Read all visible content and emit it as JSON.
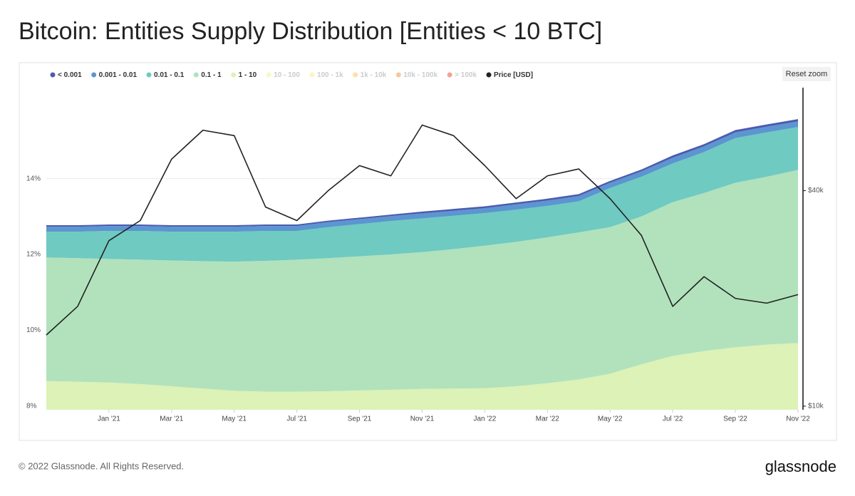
{
  "chart_data": {
    "type": "stacked_area",
    "title": "Bitcoin: Entities Supply Distribution [Entities < 10 BTC]",
    "reset_button": "Reset zoom",
    "watermark": "glassnode",
    "footer": "© 2022 Glassnode. All Rights Reserved.",
    "logo": "glassnode",
    "x": [
      "2020-11",
      "2020-12",
      "2021-01",
      "2021-02",
      "2021-03",
      "2021-04",
      "2021-05",
      "2021-06",
      "2021-07",
      "2021-08",
      "2021-09",
      "2021-10",
      "2021-11",
      "2021-12",
      "2022-01",
      "2022-02",
      "2022-03",
      "2022-04",
      "2022-05",
      "2022-06",
      "2022-07",
      "2022-08",
      "2022-09",
      "2022-10",
      "2022-11"
    ],
    "xlim": [
      "2020-11",
      "2022-11"
    ],
    "xticks": [
      {
        "value": "2021-01",
        "label": "Jan '21"
      },
      {
        "value": "2021-03",
        "label": "Mar '21"
      },
      {
        "value": "2021-05",
        "label": "May '21"
      },
      {
        "value": "2021-07",
        "label": "Jul '21"
      },
      {
        "value": "2021-09",
        "label": "Sep '21"
      },
      {
        "value": "2021-11",
        "label": "Nov '21"
      },
      {
        "value": "2022-01",
        "label": "Jan '22"
      },
      {
        "value": "2022-03",
        "label": "Mar '22"
      },
      {
        "value": "2022-05",
        "label": "May '22"
      },
      {
        "value": "2022-07",
        "label": "Jul '22"
      },
      {
        "value": "2022-09",
        "label": "Sep '22"
      },
      {
        "value": "2022-11",
        "label": "Nov '22"
      }
    ],
    "ylim": [
      7.9,
      16.4
    ],
    "yticks": [
      {
        "value": 8,
        "label": "8%"
      },
      {
        "value": 10,
        "label": "10%"
      },
      {
        "value": 12,
        "label": "12%"
      },
      {
        "value": 14,
        "label": "14%"
      }
    ],
    "y2lim": [
      9770,
      77600
    ],
    "y2log": true,
    "y2ticks": [
      {
        "value": 10000,
        "label": "$10k"
      },
      {
        "value": 40000,
        "label": "$40k"
      }
    ],
    "grid": true,
    "legend": "top",
    "series": [
      {
        "name": "< 0.001",
        "color": "#4d5bb0",
        "values": [
          0.04,
          0.04,
          0.04,
          0.04,
          0.04,
          0.04,
          0.04,
          0.04,
          0.04,
          0.04,
          0.04,
          0.04,
          0.05,
          0.05,
          0.05,
          0.05,
          0.05,
          0.05,
          0.05,
          0.05,
          0.06,
          0.06,
          0.06,
          0.06,
          0.06
        ]
      },
      {
        "name": "0.001 - 0.01",
        "color": "#5b96d0",
        "values": [
          0.13,
          0.13,
          0.13,
          0.13,
          0.13,
          0.13,
          0.13,
          0.13,
          0.13,
          0.13,
          0.13,
          0.13,
          0.13,
          0.13,
          0.13,
          0.14,
          0.14,
          0.14,
          0.14,
          0.14,
          0.15,
          0.15,
          0.15,
          0.15,
          0.15
        ]
      },
      {
        "name": "0.01 - 0.1",
        "color": "#6fcac1",
        "values": [
          0.68,
          0.7,
          0.74,
          0.76,
          0.76,
          0.78,
          0.79,
          0.79,
          0.76,
          0.82,
          0.85,
          0.88,
          0.89,
          0.88,
          0.86,
          0.85,
          0.83,
          0.82,
          1.03,
          1.05,
          1.02,
          1.08,
          1.18,
          1.17,
          1.13
        ]
      },
      {
        "name": "0.1 - 1",
        "color": "#b1e2bc",
        "values": [
          3.26,
          3.26,
          3.26,
          3.28,
          3.32,
          3.36,
          3.41,
          3.45,
          3.48,
          3.51,
          3.54,
          3.57,
          3.61,
          3.68,
          3.76,
          3.81,
          3.85,
          3.88,
          3.87,
          3.9,
          4.06,
          4.17,
          4.34,
          4.43,
          4.57
        ]
      },
      {
        "name": "1 - 10",
        "color": "#dcf2b6",
        "values": [
          8.66,
          8.64,
          8.62,
          8.58,
          8.52,
          8.46,
          8.4,
          8.38,
          8.38,
          8.39,
          8.41,
          8.43,
          8.45,
          8.46,
          8.47,
          8.52,
          8.6,
          8.7,
          8.85,
          9.1,
          9.32,
          9.45,
          9.55,
          9.62,
          9.66
        ]
      },
      {
        "name": "10 - 100",
        "color": "#f3f3a6",
        "hidden": true
      },
      {
        "name": "100 - 1k",
        "color": "#f8ed9e",
        "hidden": true
      },
      {
        "name": "1k - 10k",
        "color": "#f6cd6a",
        "hidden": true
      },
      {
        "name": "10k - 100k",
        "color": "#f4a25a",
        "hidden": true
      },
      {
        "name": "> 100k",
        "color": "#e8644a",
        "hidden": true
      },
      {
        "name": "Price [USD]",
        "color": "#222222",
        "axis": "y2",
        "type": "line",
        "values": [
          15800,
          19000,
          29000,
          33000,
          49000,
          59000,
          57000,
          36000,
          33000,
          40000,
          47000,
          44000,
          61000,
          57000,
          47000,
          38000,
          44000,
          46000,
          38000,
          30000,
          19000,
          23000,
          20000,
          19400,
          20500
        ]
      }
    ]
  }
}
